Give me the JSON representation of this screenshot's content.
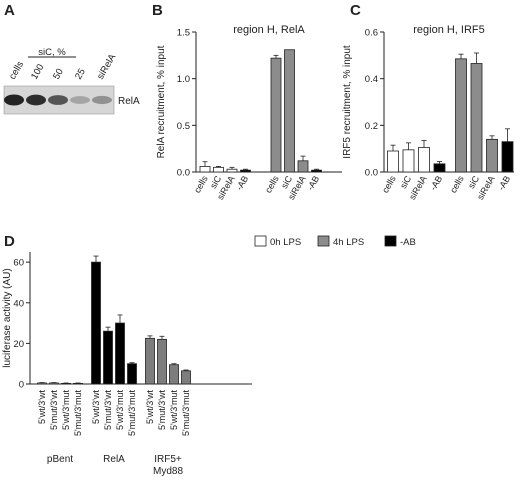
{
  "panels": {
    "A": "A",
    "B": "B",
    "C": "C",
    "D": "D"
  },
  "blot": {
    "lanes": [
      "cells",
      "100",
      "50",
      "25",
      "siRelA"
    ],
    "siC_label": "siC, %",
    "band_label": "RelA",
    "band_intensity": [
      1.0,
      0.95,
      0.75,
      0.35,
      0.45
    ]
  },
  "legend": [
    {
      "label": "0h LPS",
      "color": "#ffffff"
    },
    {
      "label": "4h LPS",
      "color": "#8c8c8c"
    },
    {
      "label": "-AB",
      "color": "#000000"
    }
  ],
  "chart_data": [
    {
      "type": "bar",
      "panel": "B",
      "title": "region H, RelA",
      "ylabel": "RelA recruitment, % input",
      "ylim": [
        0,
        1.5
      ],
      "yticks": [
        0.0,
        0.5,
        1.0,
        1.5
      ],
      "categories": [
        "cells",
        "siC",
        "siRelA",
        "-AB",
        "cells",
        "siC",
        "siRelA",
        "-AB"
      ],
      "values": [
        0.06,
        0.05,
        0.03,
        0.02,
        1.22,
        1.31,
        0.12,
        0.02
      ],
      "errors": [
        0.05,
        0.01,
        0.02,
        0.01,
        0.03,
        0.0,
        0.05,
        0.01
      ],
      "colors": [
        "#ffffff",
        "#ffffff",
        "#ffffff",
        "#000000",
        "#8c8c8c",
        "#8c8c8c",
        "#8c8c8c",
        "#000000"
      ]
    },
    {
      "type": "bar",
      "panel": "C",
      "title": "region H, IRF5",
      "ylabel": "IRF5 recruitment, % input",
      "ylim": [
        0,
        0.6
      ],
      "yticks": [
        0.0,
        0.2,
        0.4,
        0.6
      ],
      "categories": [
        "cells",
        "siC",
        "siRelA",
        "-AB",
        "cells",
        "siC",
        "siRelA",
        "-AB"
      ],
      "values": [
        0.09,
        0.095,
        0.105,
        0.035,
        0.485,
        0.465,
        0.14,
        0.13
      ],
      "errors": [
        0.025,
        0.03,
        0.03,
        0.01,
        0.02,
        0.045,
        0.015,
        0.055
      ],
      "colors": [
        "#ffffff",
        "#ffffff",
        "#ffffff",
        "#000000",
        "#8c8c8c",
        "#8c8c8c",
        "#8c8c8c",
        "#000000"
      ]
    },
    {
      "type": "bar",
      "panel": "D",
      "title": "",
      "ylabel": "luciferase activity (AU)",
      "ylim": [
        0,
        65
      ],
      "yticks": [
        0,
        20,
        40,
        60
      ],
      "groups": [
        {
          "label": [
            "pBent"
          ],
          "color": "#ffffff",
          "categories": [
            "5'wt/3'wt",
            "5'mut/3'wt",
            "5'wt/3'mut",
            "5'mut/3'mut"
          ],
          "values": [
            0.5,
            0.5,
            0.3,
            0.3
          ],
          "errors": [
            0.2,
            0.2,
            0.2,
            0.2
          ]
        },
        {
          "label": [
            "RelA"
          ],
          "color": "#000000",
          "categories": [
            "5'wt/3'wt",
            "5'mut/3'wt",
            "5'wt/3'mut",
            "5'mut/3'mut"
          ],
          "values": [
            60,
            26,
            30,
            10
          ],
          "errors": [
            3,
            2,
            4,
            0.5
          ]
        },
        {
          "label": [
            "IRF5+",
            "Myd88"
          ],
          "color": "#7d7d7d",
          "categories": [
            "5'wt/3'wt",
            "5'mut/3'wt",
            "5'wt/3'mut",
            "5'mut/3'mut"
          ],
          "values": [
            22.5,
            22,
            9.5,
            6.5
          ],
          "errors": [
            1.2,
            1.5,
            0.5,
            0.4
          ]
        }
      ]
    }
  ]
}
